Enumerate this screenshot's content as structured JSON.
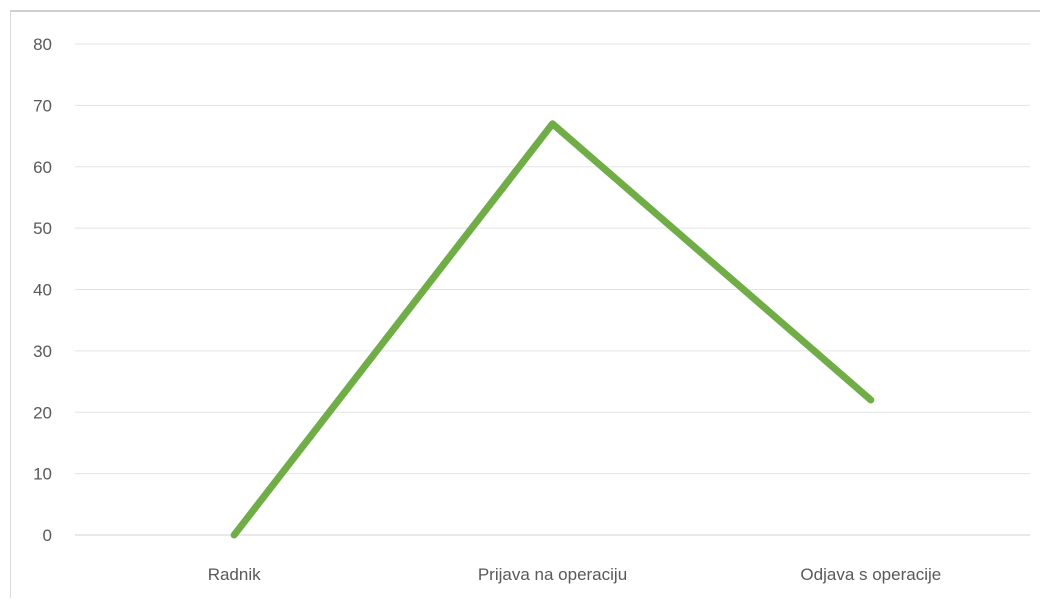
{
  "chart_data": {
    "type": "line",
    "categories": [
      "Radnik",
      "Prijava na operaciju",
      "Odjava s operacije"
    ],
    "series": [
      {
        "values": [
          0,
          67,
          22
        ],
        "color": "#70ad47"
      }
    ],
    "ylim": [
      0,
      80
    ],
    "yticks": [
      0,
      10,
      20,
      30,
      40,
      50,
      60,
      70,
      80
    ],
    "grid": true,
    "legend": "none",
    "title": "",
    "xlabel": "",
    "ylabel": ""
  }
}
